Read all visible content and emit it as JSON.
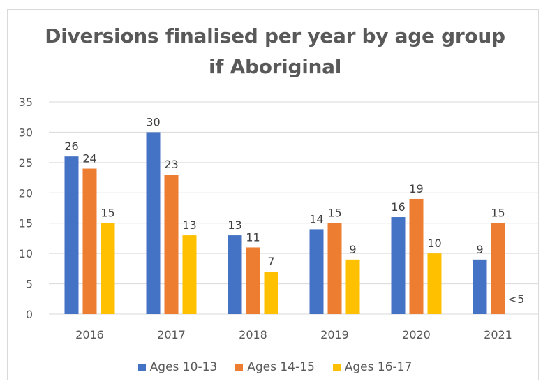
{
  "chart_data": {
    "type": "bar",
    "title_lines": [
      "Diversions finalised per year by age group",
      "if Aboriginal"
    ],
    "categories": [
      "2016",
      "2017",
      "2018",
      "2019",
      "2020",
      "2021"
    ],
    "series": [
      {
        "name": "Ages 10-13",
        "color": "#4472C4",
        "values": [
          26,
          30,
          13,
          14,
          16,
          9
        ],
        "labels": [
          "26",
          "30",
          "13",
          "14",
          "16",
          "9"
        ]
      },
      {
        "name": "Ages 14-15",
        "color": "#ED7D31",
        "values": [
          24,
          23,
          11,
          15,
          19,
          15
        ],
        "labels": [
          "24",
          "23",
          "11",
          "15",
          "19",
          "15"
        ]
      },
      {
        "name": "Ages 16-17",
        "color": "#FFC000",
        "values": [
          15,
          13,
          7,
          9,
          10,
          null
        ],
        "labels": [
          "15",
          "13",
          "7",
          "9",
          "10",
          "<5"
        ]
      }
    ],
    "yticks": [
      "0",
      "5",
      "10",
      "15",
      "20",
      "25",
      "30",
      "35"
    ],
    "ylim": [
      0,
      35
    ],
    "grid": true,
    "legend_position": "bottom"
  }
}
